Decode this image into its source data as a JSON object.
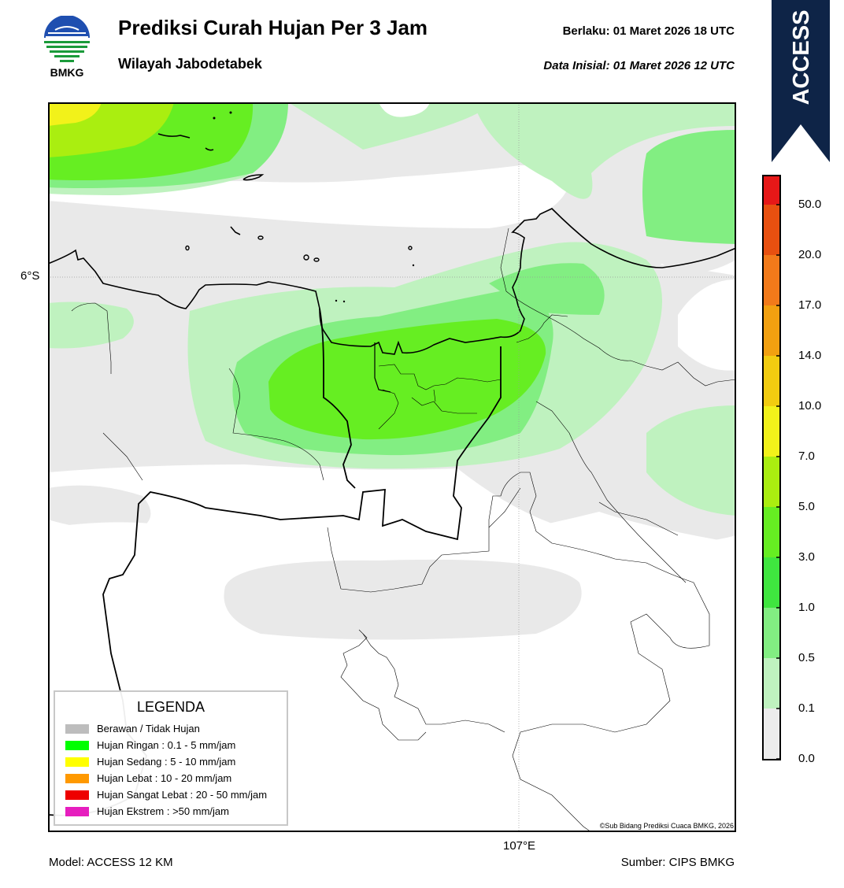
{
  "header": {
    "title": "Prediksi Curah Hujan Per 3 Jam",
    "subtitle": "Wilayah Jabodetabek",
    "valid_time": "Berlaku:  01 Maret 2026 18 UTC",
    "initial_time": "Data Inisial:  01 Maret 2026 12 UTC"
  },
  "logo": {
    "text": "BMKG"
  },
  "ribbon": {
    "text": "ACCESS",
    "color": "#0e2447"
  },
  "map": {
    "lat_label": "6°S",
    "lon_label": "107°E",
    "copyright": "©Sub Bidang Prediksi Cuaca BMKG, 2026"
  },
  "legend": {
    "title": "LEGENDA",
    "items": [
      {
        "label": "Berawan / Tidak Hujan",
        "color": "#bdbdbd"
      },
      {
        "label": "Hujan Ringan : 0.1 - 5 mm/jam",
        "color": "#00ff00"
      },
      {
        "label": "Hujan Sedang : 5 - 10 mm/jam",
        "color": "#ffff00"
      },
      {
        "label": "Hujan Lebat : 10 - 20 mm/jam",
        "color": "#ff9900"
      },
      {
        "label": "Hujan Sangat Lebat : 20 - 50 mm/jam",
        "color": "#ee0000"
      },
      {
        "label": "Hujan Ekstrem : >50 mm/jam",
        "color": "#e61ebe"
      }
    ]
  },
  "colorbar": {
    "ticks": [
      "0.0",
      "0.1",
      "0.5",
      "1.0",
      "3.0",
      "5.0",
      "7.0",
      "10.0",
      "14.0",
      "17.0",
      "20.0",
      "50.0"
    ],
    "colors": [
      "#ececec",
      "#bff2bf",
      "#82ee82",
      "#3fe63f",
      "#66ee22",
      "#aaee10",
      "#f2f21a",
      "#f2cc10",
      "#f2a010",
      "#f27a1a",
      "#e85010",
      "#e61818",
      "#e020c8"
    ]
  },
  "footer": {
    "model": "Model: ACCESS 12 KM",
    "source": "Sumber: CIPS BMKG"
  }
}
